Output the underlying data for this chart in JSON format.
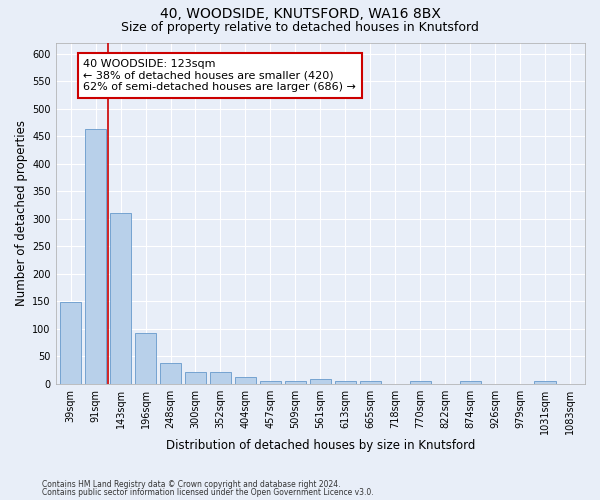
{
  "title": "40, WOODSIDE, KNUTSFORD, WA16 8BX",
  "subtitle": "Size of property relative to detached houses in Knutsford",
  "xlabel": "Distribution of detached houses by size in Knutsford",
  "ylabel": "Number of detached properties",
  "bar_labels": [
    "39sqm",
    "91sqm",
    "143sqm",
    "196sqm",
    "248sqm",
    "300sqm",
    "352sqm",
    "404sqm",
    "457sqm",
    "509sqm",
    "561sqm",
    "613sqm",
    "665sqm",
    "718sqm",
    "770sqm",
    "822sqm",
    "874sqm",
    "926sqm",
    "979sqm",
    "1031sqm",
    "1083sqm"
  ],
  "bar_values": [
    148,
    462,
    311,
    92,
    37,
    22,
    22,
    13,
    6,
    5,
    8,
    5,
    5,
    0,
    5,
    0,
    5,
    0,
    0,
    5,
    0
  ],
  "bar_color": "#b8d0ea",
  "bar_edge_color": "#6699cc",
  "vline_x": 1.5,
  "annotation_line1": "40 WOODSIDE: 123sqm",
  "annotation_line2": "← 38% of detached houses are smaller (420)",
  "annotation_line3": "62% of semi-detached houses are larger (686) →",
  "annotation_box_color": "#ffffff",
  "annotation_box_edge": "#cc0000",
  "ylim": [
    0,
    620
  ],
  "yticks": [
    0,
    50,
    100,
    150,
    200,
    250,
    300,
    350,
    400,
    450,
    500,
    550,
    600
  ],
  "background_color": "#e8eef8",
  "plot_bg_color": "#e8eef8",
  "footer_line1": "Contains HM Land Registry data © Crown copyright and database right 2024.",
  "footer_line2": "Contains public sector information licensed under the Open Government Licence v3.0.",
  "title_fontsize": 10,
  "subtitle_fontsize": 9,
  "xlabel_fontsize": 8.5,
  "ylabel_fontsize": 8.5,
  "tick_fontsize": 7,
  "annot_fontsize": 8,
  "vline_color": "#cc0000",
  "grid_color": "#ffffff"
}
